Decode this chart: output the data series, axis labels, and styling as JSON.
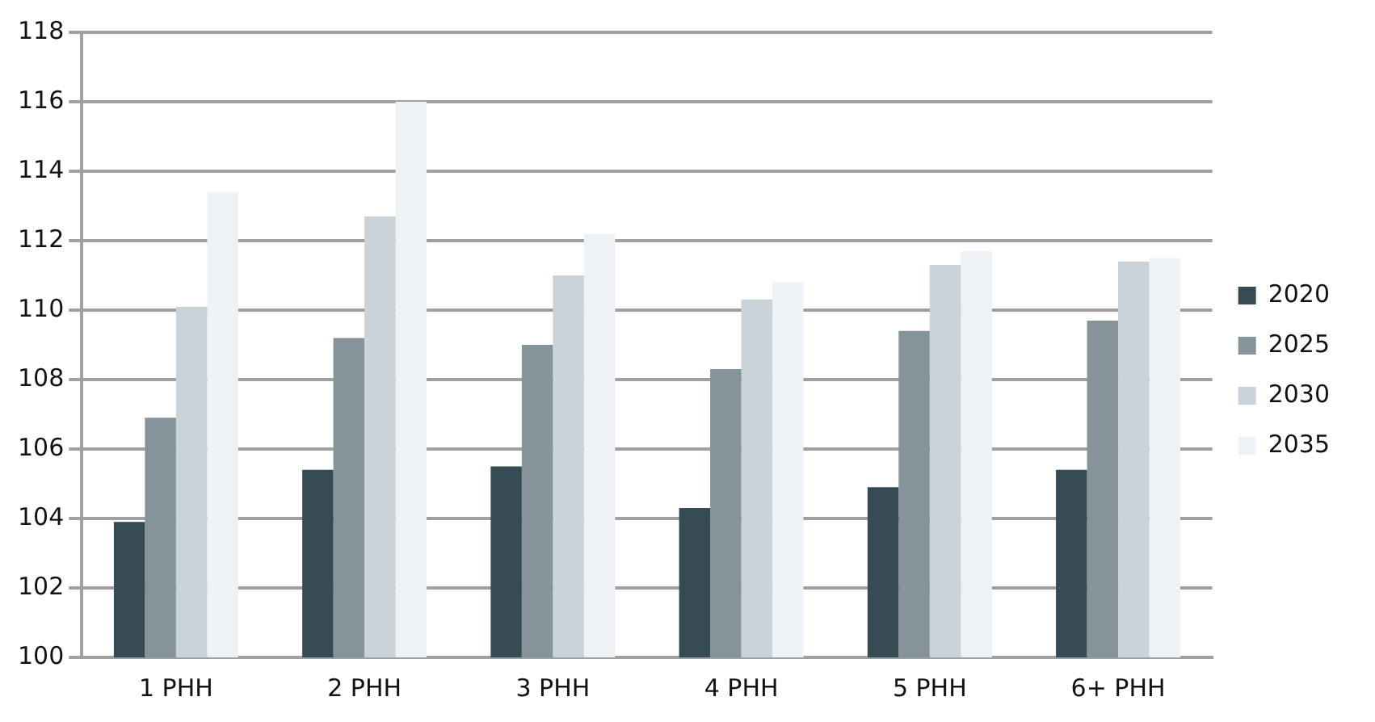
{
  "chart_data": {
    "type": "bar",
    "categories": [
      "1 PHH",
      "2 PHH",
      "3 PHH",
      "4 PHH",
      "5 PHH",
      "6+ PHH"
    ],
    "series": [
      {
        "name": "2020",
        "color": "#364a54",
        "values": [
          103.9,
          105.4,
          105.5,
          104.3,
          104.9,
          105.4
        ]
      },
      {
        "name": "2025",
        "color": "#85939b",
        "values": [
          106.9,
          109.2,
          109.0,
          108.3,
          109.4,
          109.7
        ]
      },
      {
        "name": "2030",
        "color": "#cad3d9",
        "values": [
          110.1,
          112.7,
          111.0,
          110.3,
          111.3,
          111.4
        ]
      },
      {
        "name": "2035",
        "color": "#eef2f5",
        "values": [
          113.4,
          116.0,
          112.2,
          110.8,
          111.7,
          111.5
        ]
      }
    ],
    "ylim": [
      100,
      118
    ],
    "yticks": [
      100,
      102,
      104,
      106,
      108,
      110,
      112,
      114,
      116,
      118
    ],
    "grid": "y",
    "legend": "right"
  }
}
